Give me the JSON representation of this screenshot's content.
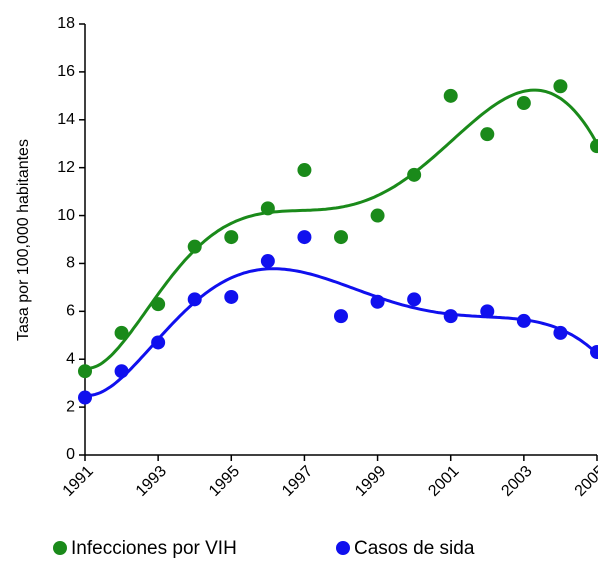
{
  "chart_data": {
    "type": "scatter",
    "y_label": "Tasa por 100,000 habitantes",
    "x": [
      1991,
      1992,
      1993,
      1994,
      1995,
      1996,
      1997,
      1998,
      1999,
      2000,
      2001,
      2002,
      2003,
      2004,
      2005
    ],
    "series": [
      {
        "name": "Infecciones por VIH",
        "color": "#1a8a1a",
        "values": [
          3.5,
          5.1,
          6.3,
          8.7,
          9.1,
          10.3,
          11.9,
          9.1,
          10.0,
          11.7,
          15.0,
          13.4,
          14.7,
          15.4,
          12.9
        ]
      },
      {
        "name": "Casos de sida",
        "color": "#1010ee",
        "values": [
          2.4,
          3.5,
          4.7,
          6.5,
          6.6,
          8.1,
          9.1,
          5.8,
          6.4,
          6.5,
          5.8,
          6.0,
          5.6,
          5.1,
          4.3
        ]
      }
    ],
    "xlim": [
      1991,
      2005
    ],
    "xticks": [
      1991,
      1993,
      1995,
      1997,
      1999,
      2001,
      2003,
      2005
    ],
    "ylim": [
      0,
      18
    ],
    "yticks": [
      0,
      2,
      4,
      6,
      8,
      10,
      12,
      14,
      16,
      18
    ],
    "trendline_degree": 6
  }
}
